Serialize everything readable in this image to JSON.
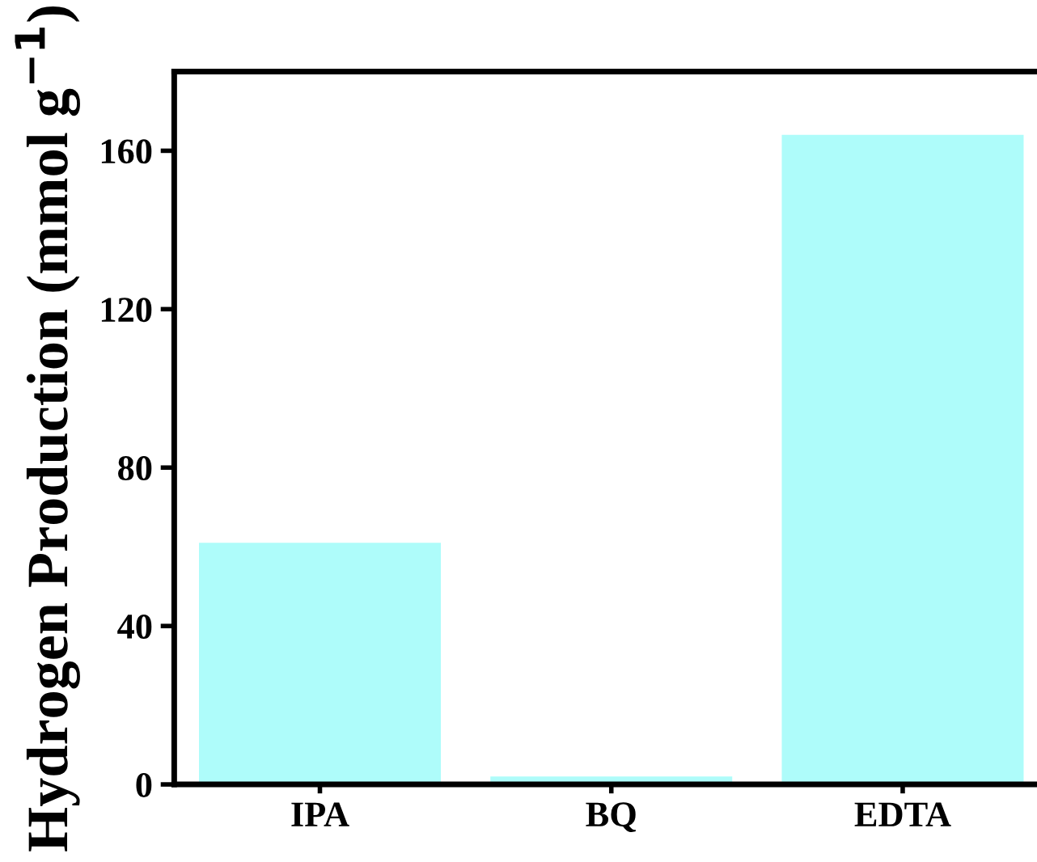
{
  "chart_data": {
    "type": "bar",
    "ylabel": "Hydrogen Production (mmol g$^{−1}$)",
    "categories": [
      "IPA",
      "BQ",
      "EDTA"
    ],
    "values": [
      61,
      2,
      164
    ],
    "color": "#aefcfa",
    "ylim": [
      0,
      180
    ],
    "yticks": [
      0,
      40,
      80,
      120,
      160
    ],
    "grid": false,
    "legend": false
  }
}
